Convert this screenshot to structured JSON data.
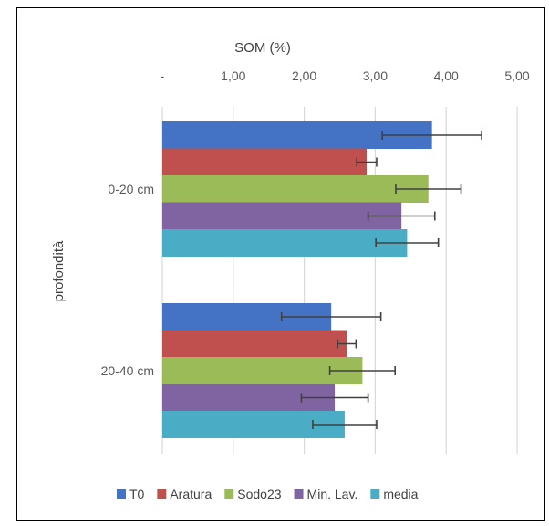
{
  "chart_data": {
    "type": "bar",
    "orientation": "horizontal",
    "title": "",
    "xlabel": "SOM (%)",
    "ylabel": "profondità",
    "xlim": [
      0,
      5
    ],
    "x_ticks": [
      0,
      1,
      2,
      3,
      4,
      5
    ],
    "x_tick_labels": [
      "-",
      "1,00",
      "2,00",
      "3,00",
      "4,00",
      "5,00"
    ],
    "x_axis_position": "top",
    "grid": "vertical",
    "legend_position": "bottom",
    "categories": [
      "0-20 cm",
      "20-40 cm"
    ],
    "series": [
      {
        "name": "T0",
        "color": "#4472C4",
        "values": [
          3.8,
          2.38
        ],
        "errors": [
          0.7,
          0.7
        ]
      },
      {
        "name": "Aratura",
        "color": "#C0504D",
        "values": [
          2.88,
          2.6
        ],
        "errors": [
          0.14,
          0.13
        ]
      },
      {
        "name": "Sodo23",
        "color": "#9BBB59",
        "values": [
          3.75,
          2.82
        ],
        "errors": [
          0.46,
          0.46
        ]
      },
      {
        "name": "Min. Lav.",
        "color": "#8064A2",
        "values": [
          3.37,
          2.43
        ],
        "errors": [
          0.47,
          0.47
        ]
      },
      {
        "name": "media",
        "color": "#4BACC6",
        "values": [
          3.45,
          2.57
        ],
        "errors": [
          0.44,
          0.45
        ]
      }
    ]
  }
}
